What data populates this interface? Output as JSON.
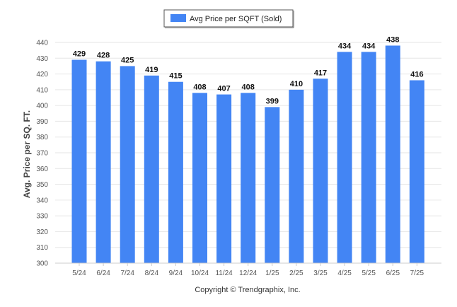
{
  "chart_data": {
    "type": "bar",
    "categories": [
      "5/24",
      "6/24",
      "7/24",
      "8/24",
      "9/24",
      "10/24",
      "11/24",
      "12/24",
      "1/25",
      "2/25",
      "3/25",
      "4/25",
      "5/25",
      "6/25",
      "7/25"
    ],
    "series": [
      {
        "name": "Avg Price per SQFT (Sold)",
        "values": [
          429,
          428,
          425,
          419,
          415,
          408,
          407,
          408,
          399,
          410,
          417,
          434,
          434,
          438,
          416
        ]
      }
    ],
    "ylabel": "Avg. Price per SQ. FT.",
    "xlabel": "",
    "ylim": [
      300,
      440
    ],
    "yticks": [
      300,
      310,
      320,
      330,
      340,
      350,
      360,
      370,
      380,
      390,
      400,
      410,
      420,
      430,
      440
    ],
    "grid": true,
    "legend_position": "top-center",
    "bar_color": "#4385f4",
    "copyright": "Copyright © Trendgraphix, Inc."
  }
}
